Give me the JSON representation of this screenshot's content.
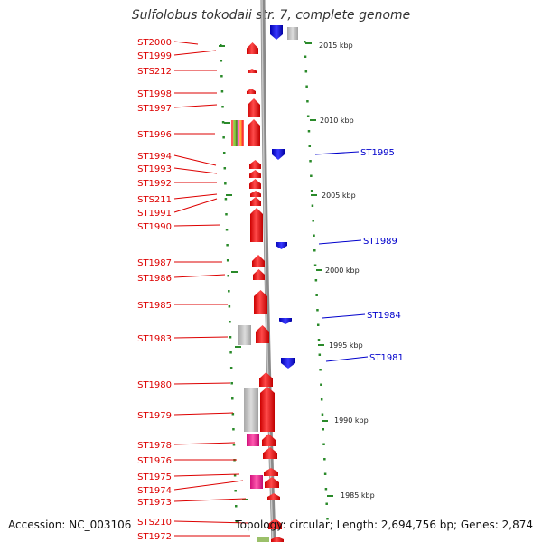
{
  "title": "Sulfolobus tokodaii str. 7, complete genome",
  "footer": {
    "accession": "Accession: NC_003106",
    "topology": "Topology: circular; Length: 2,694,756 bp; Genes: 2,874"
  },
  "colors": {
    "forward_gene": "#ff0000",
    "reverse_gene": "#0000dd",
    "marker": "#2a8a2a",
    "backbone": "#888888"
  },
  "left_labels": [
    "ST2000",
    "ST1999",
    "STS212",
    "ST1998",
    "ST1997",
    "ST1996",
    "ST1994",
    "ST1993",
    "ST1992",
    "STS211",
    "ST1991",
    "ST1990",
    "ST1987",
    "ST1986",
    "ST1985",
    "ST1983",
    "ST1980",
    "ST1979",
    "ST1978",
    "ST1976",
    "ST1975",
    "ST1974",
    "ST1973",
    "STS210",
    "ST1972"
  ],
  "right_labels": [
    "ST1995",
    "ST1989",
    "ST1984",
    "ST1981"
  ],
  "scale_labels": [
    "2015 kbp",
    "2010 kbp",
    "2005 kbp",
    "2000 kbp",
    "1995 kbp",
    "1990 kbp",
    "1985 kbp"
  ]
}
